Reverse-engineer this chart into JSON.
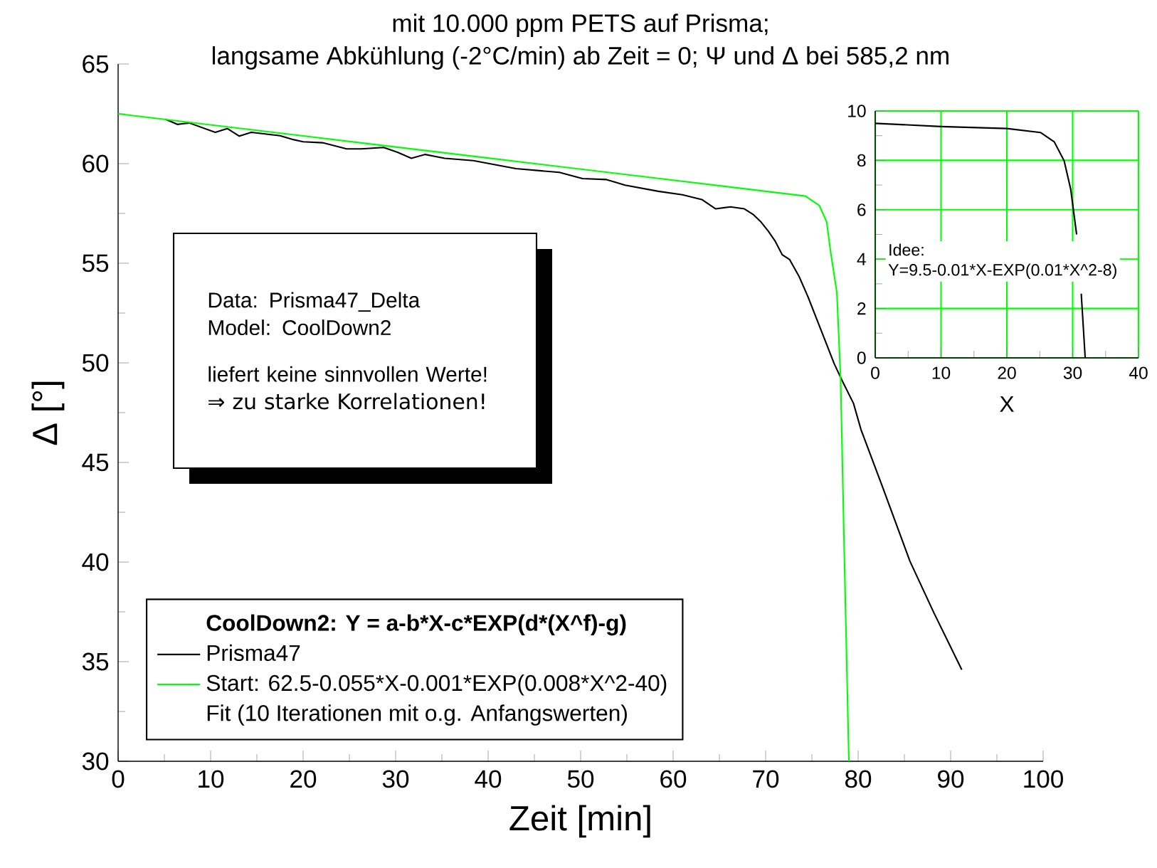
{
  "chart_data": [
    {
      "type": "line",
      "title": "mit 10.000 ppm PETS auf Prisma;",
      "subtitle": "langsame Abkühlung (-2°C/min) ab Zeit = 0; Ψ und Δ bei 585,2 nm",
      "xlabel": "Zeit [min]",
      "ylabel": "Δ [°]",
      "xlim": [
        0,
        100
      ],
      "ylim": [
        30,
        65
      ],
      "xticks": [
        0,
        10,
        20,
        30,
        40,
        50,
        60,
        70,
        80,
        90,
        100
      ],
      "yticks": [
        30,
        35,
        40,
        45,
        50,
        55,
        60,
        65
      ],
      "legend": "bottom left",
      "legend_title": "CoolDown2: Y = a-b*X-c*EXP(d*(X^f)-g)",
      "series": [
        {
          "name": "Prisma47",
          "color": "#000000",
          "x": [
            5.1,
            6.4,
            7.7,
            10.5,
            11.8,
            13.1,
            14.4,
            17.5,
            19.0,
            20.0,
            22.1,
            24.7,
            26.2,
            28.7,
            30.2,
            31.7,
            33.2,
            35.3,
            38.4,
            43.0,
            47.7,
            50.2,
            52.8,
            54.8,
            58.4,
            61.0,
            63.1,
            64.6,
            66.2,
            67.7,
            68.7,
            69.5,
            70.3,
            71.0,
            71.8,
            72.6,
            73.6,
            74.6,
            75.6,
            76.4,
            77.4,
            78.1,
            79.5,
            80.3,
            82.6,
            85.6,
            88.2,
            91.2
          ],
          "values": [
            62.23,
            61.97,
            62.04,
            61.57,
            61.76,
            61.38,
            61.57,
            61.4,
            61.2,
            61.1,
            61.05,
            60.74,
            60.74,
            60.81,
            60.57,
            60.27,
            60.46,
            60.27,
            60.15,
            59.75,
            59.56,
            59.25,
            59.2,
            58.92,
            58.61,
            58.44,
            58.2,
            57.73,
            57.83,
            57.73,
            57.43,
            57.07,
            56.6,
            56.13,
            55.42,
            55.18,
            54.35,
            53.29,
            52.1,
            51.16,
            49.97,
            49.27,
            47.96,
            46.66,
            43.82,
            40.04,
            37.44,
            34.6
          ]
        },
        {
          "name": "Start: 62.5-0.055*X-0.001*EXP(0.008*X^2-40)",
          "color": "#00ff00",
          "x": [
            0,
            20,
            40,
            60,
            74.3,
            75.8,
            76.6,
            77.0,
            77.7,
            78.1,
            78.5,
            79.0
          ],
          "values": [
            62.5,
            61.39,
            60.28,
            59.17,
            58.37,
            57.9,
            57.07,
            55.65,
            53.52,
            49.27,
            40.5,
            30
          ]
        }
      ],
      "annotations": [
        "Data: Prisma47_Delta",
        "Model: CoolDown2",
        "liefert keine sinnvollen Werte!",
        "⇒ zu starke Korrelationen!",
        "Fit (10 Iterationen mit o.g. Anfangswerten)"
      ]
    },
    {
      "type": "line",
      "xlabel": "X",
      "xlim": [
        0,
        40
      ],
      "ylim": [
        0,
        10
      ],
      "xticks": [
        0,
        10,
        20,
        30,
        40
      ],
      "yticks": [
        0,
        2,
        4,
        6,
        8,
        10
      ],
      "grid": true,
      "series": [
        {
          "color": "#000000",
          "x": [
            0,
            10,
            20,
            25.1,
            27.2,
            28.7,
            29.7,
            30.6,
            31.0,
            31.3,
            31.9
          ],
          "values": [
            9.5,
            9.37,
            9.29,
            9.13,
            8.75,
            7.98,
            6.83,
            5.0,
            null,
            2.6,
            0
          ]
        }
      ],
      "annotations": [
        "Idee:",
        "Y=9.5-0.01*X-EXP(0.01*X^2-8)"
      ]
    }
  ]
}
